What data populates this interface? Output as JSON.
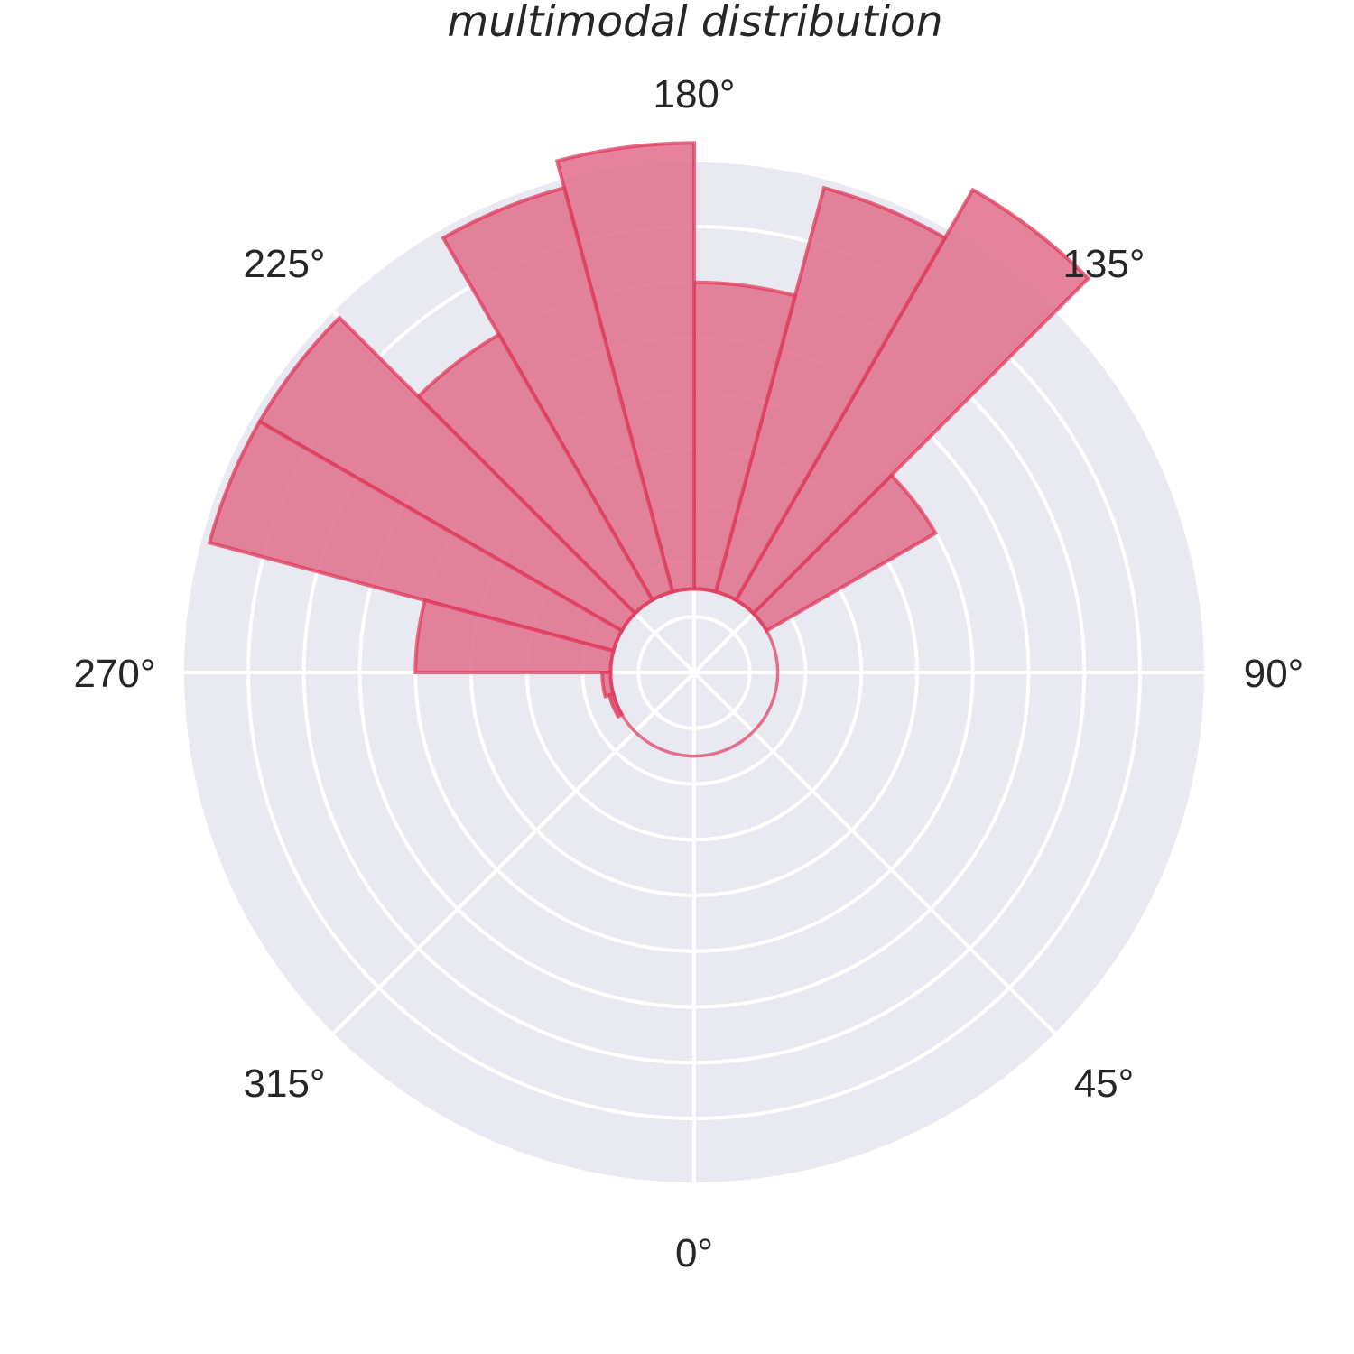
{
  "chart_data": {
    "type": "bar",
    "subtype": "polar-histogram",
    "title": "multimodal distribution",
    "theta_zero_location": "bottom",
    "theta_direction": "counterclockwise",
    "angular_ticks": [
      {
        "deg": 0,
        "label": "0°"
      },
      {
        "deg": 45,
        "label": "45°"
      },
      {
        "deg": 90,
        "label": "90°"
      },
      {
        "deg": 135,
        "label": "135°"
      },
      {
        "deg": 180,
        "label": "180°"
      },
      {
        "deg": 225,
        "label": "225°"
      },
      {
        "deg": 270,
        "label": "270°"
      },
      {
        "deg": 315,
        "label": "315°"
      }
    ],
    "radial_ticks_visible": false,
    "bars": [
      {
        "start_deg": 90,
        "end_deg": 105,
        "value": 0
      },
      {
        "start_deg": 105,
        "end_deg": 120,
        "value": 0
      },
      {
        "start_deg": 120,
        "end_deg": 135,
        "value": 7
      },
      {
        "start_deg": 135,
        "end_deg": 150,
        "value": 17
      },
      {
        "start_deg": 150,
        "end_deg": 165,
        "value": 15
      },
      {
        "start_deg": 165,
        "end_deg": 180,
        "value": 11
      },
      {
        "start_deg": 180,
        "end_deg": 195,
        "value": 16
      },
      {
        "start_deg": 195,
        "end_deg": 210,
        "value": 15
      },
      {
        "start_deg": 210,
        "end_deg": 225,
        "value": 11
      },
      {
        "start_deg": 225,
        "end_deg": 240,
        "value": 15
      },
      {
        "start_deg": 240,
        "end_deg": 255,
        "value": 15
      },
      {
        "start_deg": 255,
        "end_deg": 270,
        "value": 7
      },
      {
        "start_deg": 270,
        "end_deg": 285,
        "value": 0.3
      },
      {
        "start_deg": 285,
        "end_deg": 300,
        "value": 0.15
      }
    ],
    "radial_range": [
      0,
      18.3
    ],
    "inner_radius_value": 3,
    "colors": {
      "background": "#e9e9f1",
      "grid": "#ffffff",
      "bar_fill": "#e17590",
      "bar_edge": "#df3a5c",
      "text": "#262626"
    }
  }
}
